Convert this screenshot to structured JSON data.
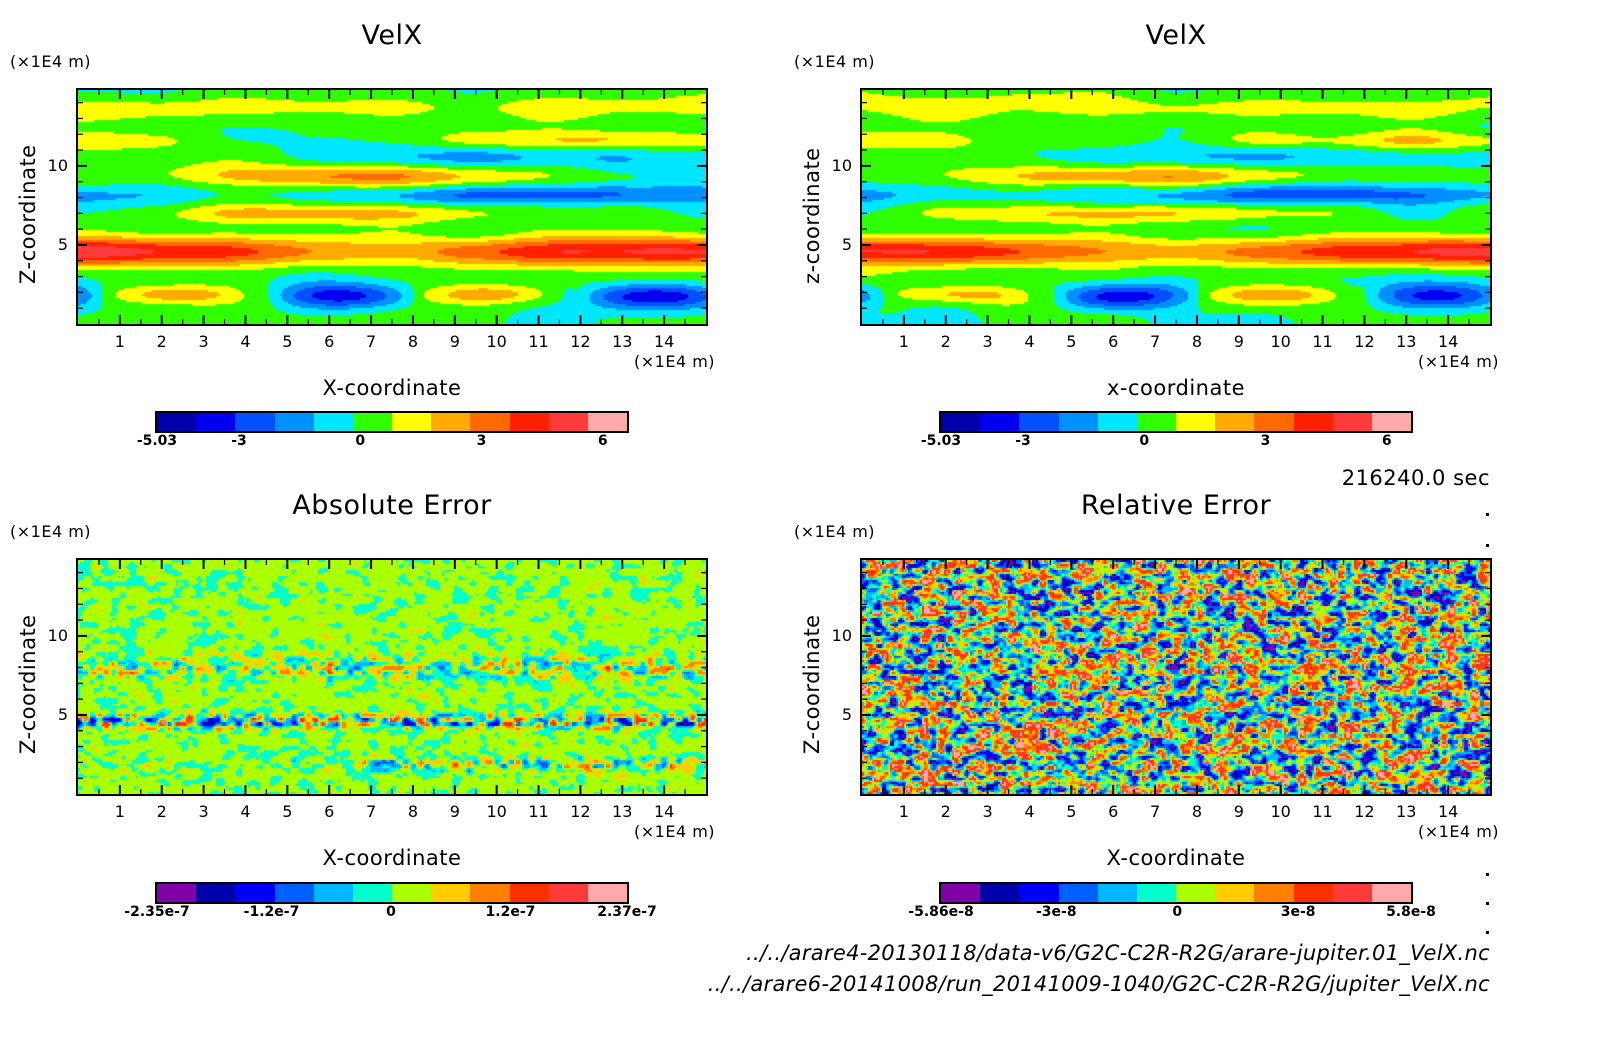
{
  "figure": {
    "timestamp": "216240.0 sec",
    "files": [
      "../../arare4-20130118/data-v6/G2C-C2R-R2G/arare-jupiter.01_VelX.nc",
      "../../arare6-20141008/run_20141009-1040/G2C-C2R-R2G/jupiter_VelX.nc"
    ]
  },
  "chart_data": [
    {
      "type": "heatmap",
      "title": "VelX",
      "xlabel": "X-coordinate",
      "ylabel": "Z-coordinate",
      "x_unit": "(×1E4 m)",
      "y_unit": "(×1E4 m)",
      "xlim": [
        0,
        15
      ],
      "ylim": [
        0,
        14.8
      ],
      "xticks": [
        "1",
        "2",
        "3",
        "4",
        "5",
        "6",
        "7",
        "8",
        "9",
        "10",
        "11",
        "12",
        "13",
        "14"
      ],
      "yticks": [
        "5",
        "10"
      ],
      "field": "smooth-bands",
      "colorbar": {
        "range": [
          -5.03,
          6.6
        ],
        "tick_labels": [
          "-5.03",
          "-3",
          "0",
          "3",
          "6"
        ],
        "tick_values": [
          -5.03,
          -3,
          0,
          3,
          6
        ],
        "colors": [
          "#0000aa",
          "#0000ee",
          "#0050ff",
          "#0090ff",
          "#00e6ff",
          "#30ff00",
          "#ffff00",
          "#ffaa00",
          "#ff6a00",
          "#ff2000",
          "#ff3a3a",
          "#ffaaaa"
        ]
      }
    },
    {
      "type": "heatmap",
      "title": "VelX",
      "xlabel": "x-coordinate",
      "ylabel": "z-coordinate",
      "x_unit": "(×1E4 m)",
      "y_unit": "(×1E4 m)",
      "xlim": [
        0,
        15
      ],
      "ylim": [
        0,
        14.8
      ],
      "xticks": [
        "1",
        "2",
        "3",
        "4",
        "5",
        "6",
        "7",
        "8",
        "9",
        "10",
        "11",
        "12",
        "13",
        "14"
      ],
      "yticks": [
        "5",
        "10"
      ],
      "field": "smooth-bands",
      "colorbar": {
        "range": [
          -5.03,
          6.6
        ],
        "tick_labels": [
          "-5.03",
          "-3",
          "0",
          "3",
          "6"
        ],
        "tick_values": [
          -5.03,
          -3,
          0,
          3,
          6
        ],
        "colors": [
          "#0000aa",
          "#0000ee",
          "#0050ff",
          "#0090ff",
          "#00e6ff",
          "#30ff00",
          "#ffff00",
          "#ffaa00",
          "#ff6a00",
          "#ff2000",
          "#ff3a3a",
          "#ffaaaa"
        ]
      }
    },
    {
      "type": "heatmap",
      "title": "Absolute Error",
      "xlabel": "X-coordinate",
      "ylabel": "Z-coordinate",
      "x_unit": "(×1E4 m)",
      "y_unit": "(×1E4 m)",
      "xlim": [
        0,
        15
      ],
      "ylim": [
        0,
        14.8
      ],
      "xticks": [
        "1",
        "2",
        "3",
        "4",
        "5",
        "6",
        "7",
        "8",
        "9",
        "10",
        "11",
        "12",
        "13",
        "14"
      ],
      "yticks": [
        "5",
        "10"
      ],
      "field": "low-noise",
      "colorbar": {
        "range": [
          -2.35e-07,
          2.37e-07
        ],
        "tick_labels": [
          "-2.35e-7",
          "-1.2e-7",
          "0",
          "1.2e-7",
          "2.37e-7"
        ],
        "tick_values": [
          -2.35e-07,
          -1.2e-07,
          0,
          1.2e-07,
          2.37e-07
        ],
        "colors": [
          "#8000aa",
          "#0000aa",
          "#0000ff",
          "#0060ff",
          "#00b8ff",
          "#00ffcc",
          "#aaff00",
          "#ffcc00",
          "#ff8000",
          "#ff3000",
          "#ff3a3a",
          "#ffaaaa"
        ]
      }
    },
    {
      "type": "heatmap",
      "title": "Relative Error",
      "xlabel": "X-coordinate",
      "ylabel": "Z-coordinate",
      "x_unit": "(×1E4 m)",
      "y_unit": "(×1E4 m)",
      "xlim": [
        0,
        15
      ],
      "ylim": [
        0,
        14.8
      ],
      "xticks": [
        "1",
        "2",
        "3",
        "4",
        "5",
        "6",
        "7",
        "8",
        "9",
        "10",
        "11",
        "12",
        "13",
        "14"
      ],
      "yticks": [
        "5",
        "10"
      ],
      "field": "high-noise",
      "colorbar": {
        "range": [
          -5.86e-08,
          5.8e-08
        ],
        "tick_labels": [
          "-5.86e-8",
          "-3e-8",
          "0",
          "3e-8",
          "5.8e-8"
        ],
        "tick_values": [
          -5.86e-08,
          -3e-08,
          0,
          3e-08,
          5.8e-08
        ],
        "colors": [
          "#8000aa",
          "#0000aa",
          "#0000ff",
          "#0060ff",
          "#00b8ff",
          "#00ffcc",
          "#aaff00",
          "#ffcc00",
          "#ff8000",
          "#ff3000",
          "#ff3a3a",
          "#ffaaaa"
        ]
      }
    }
  ]
}
